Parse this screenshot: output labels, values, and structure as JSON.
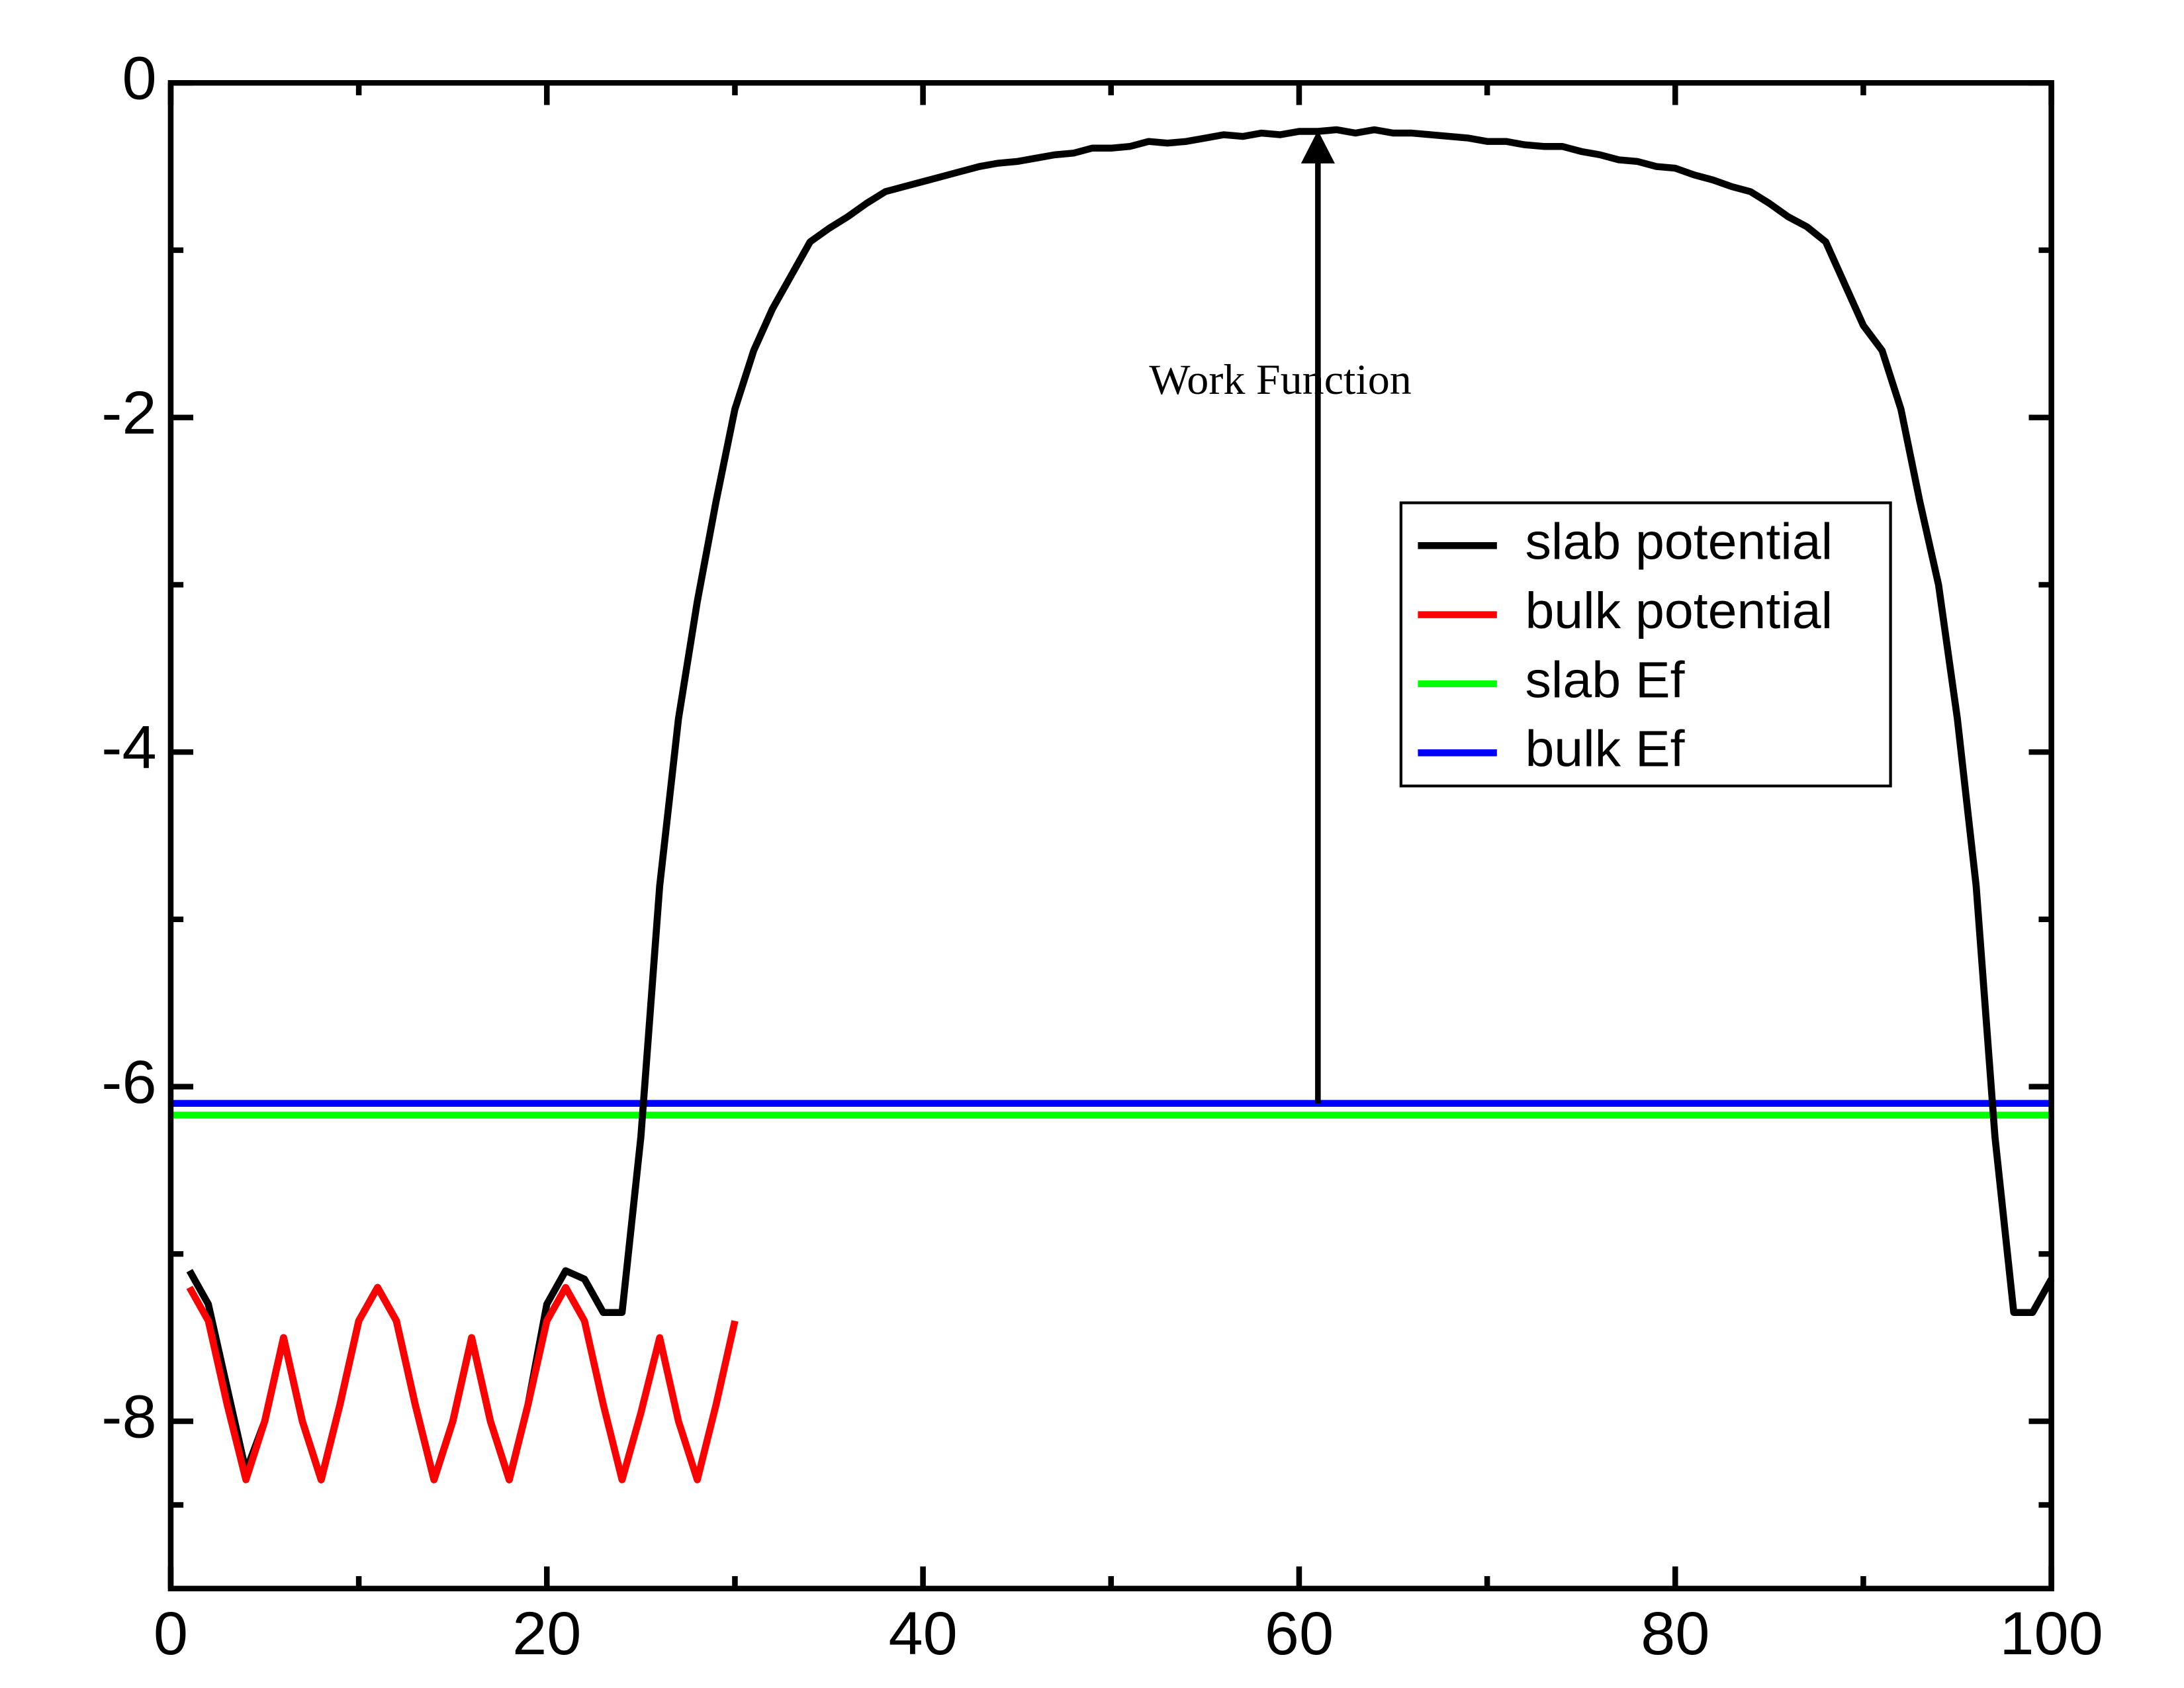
{
  "chart_data": {
    "type": "line",
    "annotation": {
      "text": "Work Function",
      "x": 59,
      "y": -1.8
    },
    "arrow": {
      "x": 61,
      "y_start": -6.1,
      "y_end": -0.3
    },
    "xlim": [
      0,
      100
    ],
    "xticks": [
      0,
      20,
      40,
      60,
      80,
      100
    ],
    "ylim": [
      -9,
      0
    ],
    "yticks": [
      0,
      -2,
      -4,
      -6,
      -8
    ],
    "legend": "upper right",
    "series": [
      {
        "name": "slab potential",
        "color": "#000000",
        "x": [
          1,
          2,
          3,
          4,
          5,
          6,
          7,
          8,
          9,
          10,
          11,
          12,
          13,
          14,
          15,
          16,
          17,
          18,
          19,
          20,
          21,
          22,
          23,
          24,
          25,
          26,
          27,
          28,
          29,
          30,
          31,
          32,
          33,
          34,
          35,
          36,
          37,
          38,
          39,
          40,
          41,
          42,
          43,
          44,
          45,
          46,
          47,
          48,
          49,
          50,
          51,
          52,
          53,
          54,
          55,
          56,
          57,
          58,
          59,
          60,
          61,
          62,
          63,
          64,
          65,
          66,
          67,
          68,
          69,
          70,
          71,
          72,
          73,
          74,
          75,
          76,
          77,
          78,
          79,
          80,
          81,
          82,
          83,
          84,
          85,
          86,
          87,
          88,
          89,
          90,
          91,
          92,
          93,
          94,
          95,
          96,
          97,
          98,
          99,
          100
        ],
        "values": [
          -7.1,
          -7.3,
          -7.8,
          -8.3,
          -8.0,
          -7.5,
          -8.0,
          -8.35,
          -7.9,
          -7.4,
          -7.2,
          -7.4,
          -7.9,
          -8.35,
          -8.0,
          -7.5,
          -8.0,
          -8.35,
          -7.9,
          -7.3,
          -7.1,
          -7.15,
          -7.35,
          -7.35,
          -6.3,
          -4.8,
          -3.8,
          -3.1,
          -2.5,
          -1.95,
          -1.6,
          -1.35,
          -1.15,
          -0.95,
          -0.87,
          -0.8,
          -0.72,
          -0.65,
          -0.62,
          -0.59,
          -0.56,
          -0.53,
          -0.5,
          -0.48,
          -0.47,
          -0.45,
          -0.43,
          -0.42,
          -0.39,
          -0.39,
          -0.38,
          -0.35,
          -0.36,
          -0.35,
          -0.33,
          -0.31,
          -0.32,
          -0.3,
          -0.31,
          -0.29,
          -0.29,
          -0.28,
          -0.3,
          -0.28,
          -0.3,
          -0.3,
          -0.31,
          -0.32,
          -0.33,
          -0.35,
          -0.35,
          -0.37,
          -0.38,
          -0.38,
          -0.41,
          -0.43,
          -0.46,
          -0.47,
          -0.5,
          -0.51,
          -0.55,
          -0.58,
          -0.62,
          -0.65,
          -0.72,
          -0.8,
          -0.86,
          -0.95,
          -1.2,
          -1.45,
          -1.6,
          -1.95,
          -2.5,
          -3.0,
          -3.8,
          -4.8,
          -6.3,
          -7.35,
          -7.35,
          -7.15
        ]
      },
      {
        "name": "bulk potential",
        "color": "#ff0000",
        "x": [
          1,
          2,
          3,
          4,
          5,
          6,
          7,
          8,
          9,
          10,
          11,
          12,
          13,
          14,
          15,
          16,
          17,
          18,
          19,
          20,
          21,
          22,
          23,
          24,
          25,
          26,
          27,
          28,
          29,
          30
        ],
        "values": [
          -7.2,
          -7.4,
          -7.9,
          -8.35,
          -8.0,
          -7.5,
          -8.0,
          -8.35,
          -7.9,
          -7.4,
          -7.2,
          -7.4,
          -7.9,
          -8.35,
          -8.0,
          -7.5,
          -8.0,
          -8.35,
          -7.9,
          -7.4,
          -7.2,
          -7.4,
          -7.9,
          -8.35,
          -7.95,
          -7.5,
          -8.0,
          -8.35,
          -7.9,
          -7.4
        ]
      },
      {
        "name": "slab Ef",
        "color": "#00ff00",
        "x": [
          0,
          100
        ],
        "values": [
          -6.17,
          -6.17
        ]
      },
      {
        "name": "bulk Ef",
        "color": "#0000ff",
        "x": [
          0,
          100
        ],
        "values": [
          -6.1,
          -6.1
        ]
      }
    ]
  }
}
